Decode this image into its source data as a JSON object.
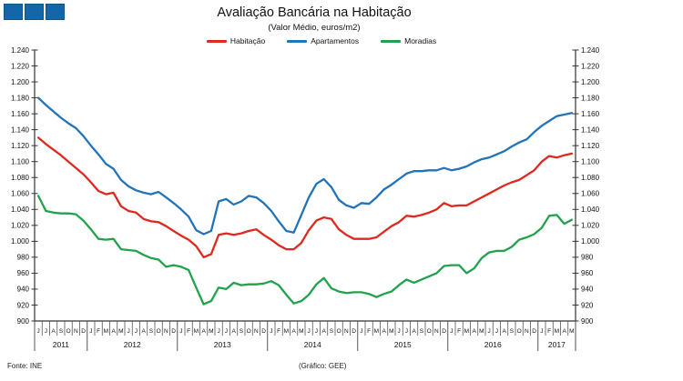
{
  "logo": {
    "color": "#1566a8",
    "square_count": 3
  },
  "header": {
    "title": "Avaliação Bancária na Habitação",
    "subtitle": "(Valor Médio, euros/m2)"
  },
  "legend": [
    {
      "label": "Habitação",
      "color": "#dd2a20"
    },
    {
      "label": "Apartamentos",
      "color": "#2273b8"
    },
    {
      "label": "Moradias",
      "color": "#22a24c"
    }
  ],
  "footer": {
    "source": "Fonte: INE",
    "credit": "(Gráfico: GEE)"
  },
  "chart_data": {
    "type": "line",
    "title": "Avaliação Bancária na Habitação",
    "subtitle": "(Valor Médio, euros/m2)",
    "ylabel": "euros/m2",
    "ylim": [
      900,
      1240
    ],
    "ytick_step": 20,
    "ytick_labels": [
      "900",
      "920",
      "940",
      "960",
      "980",
      "1.000",
      "1.020",
      "1.040",
      "1.060",
      "1.080",
      "1.100",
      "1.120",
      "1.140",
      "1.160",
      "1.180",
      "1.200",
      "1.220",
      "1.240"
    ],
    "grid": false,
    "legend_position": "top",
    "x_axis": {
      "years": [
        {
          "label": "2011",
          "months": [
            "J",
            "J",
            "A",
            "S",
            "O",
            "N",
            "D"
          ]
        },
        {
          "label": "2012",
          "months": [
            "J",
            "F",
            "M",
            "A",
            "M",
            "J",
            "J",
            "A",
            "S",
            "O",
            "N",
            "D"
          ]
        },
        {
          "label": "2013",
          "months": [
            "J",
            "F",
            "M",
            "A",
            "M",
            "J",
            "J",
            "A",
            "S",
            "O",
            "N",
            "D"
          ]
        },
        {
          "label": "2014",
          "months": [
            "J",
            "F",
            "M",
            "A",
            "M",
            "J",
            "J",
            "A",
            "S",
            "O",
            "N",
            "D"
          ]
        },
        {
          "label": "2015",
          "months": [
            "J",
            "F",
            "M",
            "A",
            "M",
            "J",
            "J",
            "A",
            "S",
            "O",
            "N",
            "D"
          ]
        },
        {
          "label": "2016",
          "months": [
            "J",
            "F",
            "M",
            "A",
            "M",
            "J",
            "J",
            "A",
            "S",
            "O",
            "N",
            "D"
          ]
        },
        {
          "label": "2017",
          "months": [
            "J",
            "F",
            "M",
            "A",
            "M"
          ]
        }
      ]
    },
    "series": [
      {
        "name": "Apartamentos",
        "color": "#2273b8",
        "values": [
          1180,
          1171,
          1163,
          1155,
          1148,
          1142,
          1132,
          1120,
          1109,
          1097,
          1091,
          1077,
          1069,
          1064,
          1061,
          1059,
          1062,
          1055,
          1048,
          1040,
          1031,
          1014,
          1009,
          1013,
          1050,
          1053,
          1046,
          1050,
          1057,
          1055,
          1048,
          1038,
          1025,
          1013,
          1011,
          1033,
          1055,
          1072,
          1078,
          1068,
          1052,
          1045,
          1042,
          1048,
          1047,
          1055,
          1065,
          1071,
          1078,
          1085,
          1088,
          1088,
          1089,
          1089,
          1092,
          1089,
          1091,
          1094,
          1099,
          1103,
          1105,
          1109,
          1113,
          1119,
          1124,
          1128,
          1137,
          1145,
          1151,
          1157,
          1159,
          1161
        ]
      },
      {
        "name": "Habitação",
        "color": "#dd2a20",
        "values": [
          1130,
          1122,
          1115,
          1108,
          1100,
          1092,
          1084,
          1074,
          1063,
          1059,
          1061,
          1044,
          1038,
          1036,
          1028,
          1025,
          1024,
          1019,
          1013,
          1007,
          1002,
          994,
          980,
          984,
          1008,
          1010,
          1008,
          1010,
          1013,
          1015,
          1008,
          1002,
          995,
          990,
          990,
          998,
          1014,
          1026,
          1030,
          1028,
          1015,
          1008,
          1003,
          1003,
          1003,
          1005,
          1012,
          1019,
          1024,
          1032,
          1031,
          1033,
          1036,
          1040,
          1048,
          1044,
          1045,
          1045,
          1050,
          1055,
          1060,
          1065,
          1070,
          1074,
          1077,
          1083,
          1089,
          1100,
          1107,
          1105,
          1108,
          1110
        ]
      },
      {
        "name": "Moradias",
        "color": "#22a24c",
        "values": [
          1057,
          1038,
          1036,
          1035,
          1035,
          1034,
          1026,
          1015,
          1003,
          1002,
          1003,
          990,
          989,
          988,
          983,
          979,
          977,
          968,
          970,
          968,
          964,
          942,
          921,
          925,
          942,
          940,
          948,
          945,
          946,
          946,
          947,
          950,
          945,
          933,
          922,
          925,
          933,
          946,
          954,
          941,
          937,
          935,
          936,
          936,
          934,
          930,
          934,
          937,
          945,
          952,
          948,
          952,
          956,
          960,
          969,
          970,
          970,
          960,
          966,
          979,
          986,
          988,
          988,
          993,
          1002,
          1005,
          1009,
          1017,
          1032,
          1033,
          1022,
          1027
        ]
      }
    ]
  }
}
